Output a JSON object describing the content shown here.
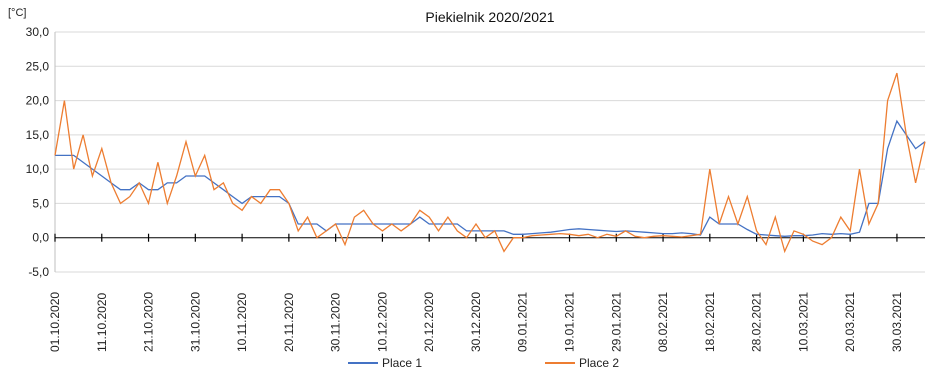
{
  "chart_data": {
    "type": "line",
    "title": "Piekielnik 2020/2021",
    "unit_label": "[°C]",
    "xlabel": "",
    "ylabel": "",
    "ylim": [
      -5,
      30
    ],
    "y_ticks": [
      "30,0",
      "25,0",
      "20,0",
      "15,0",
      "10,0",
      "5,0",
      "0,0",
      "-5,0"
    ],
    "y_tick_values": [
      30,
      25,
      20,
      15,
      10,
      5,
      0,
      -5
    ],
    "x_tick_labels": [
      "01.10.2020",
      "11.10.2020",
      "21.10.2020",
      "31.10.2020",
      "10.11.2020",
      "20.11.2020",
      "30.11.2020",
      "10.12.2020",
      "20.12.2020",
      "30.12.2020",
      "09.01.2021",
      "19.01.2021",
      "29.01.2021",
      "08.02.2021",
      "18.02.2021",
      "28.02.2021",
      "10.03.2021",
      "20.03.2021",
      "30.03.2021"
    ],
    "grid": "horizontal",
    "legend_position": "bottom",
    "x_unit": "days from 01.10.2020",
    "series": [
      {
        "name": "Place 1",
        "color": "#4472C4",
        "points": [
          [
            0,
            12
          ],
          [
            4,
            12
          ],
          [
            8,
            10
          ],
          [
            10,
            9
          ],
          [
            12,
            8
          ],
          [
            14,
            7
          ],
          [
            16,
            7
          ],
          [
            18,
            8
          ],
          [
            20,
            7
          ],
          [
            22,
            7
          ],
          [
            24,
            8
          ],
          [
            26,
            8
          ],
          [
            28,
            9
          ],
          [
            30,
            9
          ],
          [
            32,
            9
          ],
          [
            34,
            8
          ],
          [
            36,
            7
          ],
          [
            38,
            6
          ],
          [
            40,
            5
          ],
          [
            42,
            6
          ],
          [
            44,
            6
          ],
          [
            46,
            6
          ],
          [
            48,
            6
          ],
          [
            50,
            5
          ],
          [
            52,
            2
          ],
          [
            54,
            2
          ],
          [
            56,
            2
          ],
          [
            58,
            1
          ],
          [
            60,
            2
          ],
          [
            62,
            2
          ],
          [
            64,
            2
          ],
          [
            66,
            2
          ],
          [
            68,
            2
          ],
          [
            70,
            2
          ],
          [
            72,
            2
          ],
          [
            74,
            2
          ],
          [
            76,
            2
          ],
          [
            78,
            3
          ],
          [
            80,
            2
          ],
          [
            82,
            2
          ],
          [
            84,
            2
          ],
          [
            86,
            2
          ],
          [
            88,
            1
          ],
          [
            90,
            1
          ],
          [
            92,
            1
          ],
          [
            94,
            1
          ],
          [
            96,
            1
          ],
          [
            98,
            0.5
          ],
          [
            100,
            0.5
          ],
          [
            102,
            0.6
          ],
          [
            104,
            0.7
          ],
          [
            106,
            0.8
          ],
          [
            108,
            1
          ],
          [
            110,
            1.2
          ],
          [
            112,
            1.3
          ],
          [
            114,
            1.2
          ],
          [
            116,
            1.1
          ],
          [
            118,
            1
          ],
          [
            120,
            0.9
          ],
          [
            122,
            1
          ],
          [
            124,
            0.9
          ],
          [
            126,
            0.8
          ],
          [
            128,
            0.7
          ],
          [
            130,
            0.6
          ],
          [
            132,
            0.6
          ],
          [
            134,
            0.7
          ],
          [
            136,
            0.6
          ],
          [
            138,
            0.4
          ],
          [
            140,
            3
          ],
          [
            142,
            2
          ],
          [
            144,
            2
          ],
          [
            146,
            2
          ],
          [
            148,
            1.2
          ],
          [
            150,
            0.5
          ],
          [
            152,
            0.4
          ],
          [
            154,
            0.3
          ],
          [
            156,
            0.2
          ],
          [
            158,
            0.3
          ],
          [
            160,
            0.3
          ],
          [
            162,
            0.4
          ],
          [
            164,
            0.6
          ],
          [
            166,
            0.5
          ],
          [
            168,
            0.6
          ],
          [
            170,
            0.5
          ],
          [
            172,
            0.8
          ],
          [
            174,
            5
          ],
          [
            176,
            5
          ],
          [
            178,
            13
          ],
          [
            180,
            17
          ],
          [
            182,
            15
          ],
          [
            184,
            13
          ],
          [
            186,
            14
          ]
        ]
      },
      {
        "name": "Place 2",
        "color": "#ED7D31",
        "points": [
          [
            0,
            12
          ],
          [
            2,
            20
          ],
          [
            4,
            10
          ],
          [
            6,
            15
          ],
          [
            8,
            9
          ],
          [
            10,
            13
          ],
          [
            12,
            8
          ],
          [
            14,
            5
          ],
          [
            16,
            6
          ],
          [
            18,
            8
          ],
          [
            20,
            5
          ],
          [
            22,
            11
          ],
          [
            24,
            5
          ],
          [
            26,
            9
          ],
          [
            28,
            14
          ],
          [
            30,
            9
          ],
          [
            32,
            12
          ],
          [
            34,
            7
          ],
          [
            36,
            8
          ],
          [
            38,
            5
          ],
          [
            40,
            4
          ],
          [
            42,
            6
          ],
          [
            44,
            5
          ],
          [
            46,
            7
          ],
          [
            48,
            7
          ],
          [
            50,
            5
          ],
          [
            52,
            1
          ],
          [
            54,
            3
          ],
          [
            56,
            0
          ],
          [
            58,
            1
          ],
          [
            60,
            2
          ],
          [
            62,
            -1
          ],
          [
            64,
            3
          ],
          [
            66,
            4
          ],
          [
            68,
            2
          ],
          [
            70,
            1
          ],
          [
            72,
            2
          ],
          [
            74,
            1
          ],
          [
            76,
            2
          ],
          [
            78,
            4
          ],
          [
            80,
            3
          ],
          [
            82,
            1
          ],
          [
            84,
            3
          ],
          [
            86,
            1
          ],
          [
            88,
            0
          ],
          [
            90,
            2
          ],
          [
            92,
            0
          ],
          [
            94,
            1
          ],
          [
            96,
            -2
          ],
          [
            98,
            0
          ],
          [
            100,
            0
          ],
          [
            102,
            0.3
          ],
          [
            104,
            0.4
          ],
          [
            106,
            0.5
          ],
          [
            108,
            0.6
          ],
          [
            110,
            0.5
          ],
          [
            112,
            0.3
          ],
          [
            114,
            0.5
          ],
          [
            116,
            0
          ],
          [
            118,
            0.5
          ],
          [
            120,
            0.2
          ],
          [
            122,
            1
          ],
          [
            124,
            0.2
          ],
          [
            126,
            0
          ],
          [
            128,
            0.2
          ],
          [
            130,
            0.3
          ],
          [
            132,
            0.2
          ],
          [
            134,
            0.1
          ],
          [
            136,
            0.3
          ],
          [
            138,
            0.5
          ],
          [
            140,
            10
          ],
          [
            142,
            2
          ],
          [
            144,
            6
          ],
          [
            146,
            2
          ],
          [
            148,
            6
          ],
          [
            150,
            1
          ],
          [
            152,
            -1
          ],
          [
            154,
            3
          ],
          [
            156,
            -2
          ],
          [
            158,
            1
          ],
          [
            160,
            0.5
          ],
          [
            162,
            -0.5
          ],
          [
            164,
            -1
          ],
          [
            166,
            0
          ],
          [
            168,
            3
          ],
          [
            170,
            1
          ],
          [
            172,
            10
          ],
          [
            174,
            2
          ],
          [
            176,
            5
          ],
          [
            178,
            20
          ],
          [
            180,
            24
          ],
          [
            182,
            15
          ],
          [
            184,
            8
          ],
          [
            186,
            14
          ]
        ]
      }
    ]
  }
}
